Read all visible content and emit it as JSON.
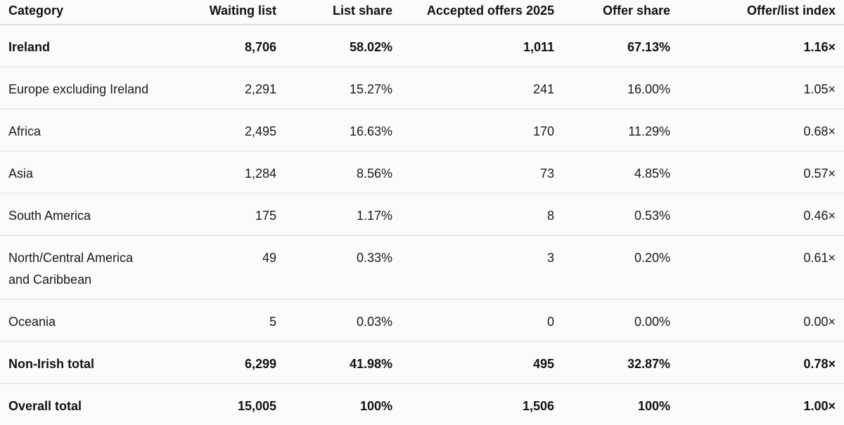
{
  "table": {
    "headers": [
      "Category",
      "Waiting list",
      "List share",
      "Accepted offers 2025",
      "Offer share",
      "Offer/list index"
    ],
    "rows": [
      {
        "bold": true,
        "cells": [
          "Ireland",
          "8,706",
          "58.02%",
          "1,011",
          "67.13%",
          "1.16×"
        ]
      },
      {
        "bold": false,
        "cells": [
          "Europe excluding Ireland",
          "2,291",
          "15.27%",
          "241",
          "16.00%",
          "1.05×"
        ]
      },
      {
        "bold": false,
        "cells": [
          "Africa",
          "2,495",
          "16.63%",
          "170",
          "11.29%",
          "0.68×"
        ]
      },
      {
        "bold": false,
        "cells": [
          "Asia",
          "1,284",
          "8.56%",
          "73",
          "4.85%",
          "0.57×"
        ]
      },
      {
        "bold": false,
        "cells": [
          "South America",
          "175",
          "1.17%",
          "8",
          "0.53%",
          "0.46×"
        ]
      },
      {
        "bold": false,
        "cells": [
          "North/Central America and Caribbean",
          "49",
          "0.33%",
          "3",
          "0.20%",
          "0.61×"
        ]
      },
      {
        "bold": false,
        "cells": [
          "Oceania",
          "5",
          "0.03%",
          "0",
          "0.00%",
          "0.00×"
        ]
      },
      {
        "bold": true,
        "cells": [
          "Non-Irish total",
          "6,299",
          "41.98%",
          "495",
          "32.87%",
          "0.78×"
        ]
      },
      {
        "bold": true,
        "cells": [
          "Overall total",
          "15,005",
          "100%",
          "1,506",
          "100%",
          "1.00×"
        ]
      }
    ]
  }
}
